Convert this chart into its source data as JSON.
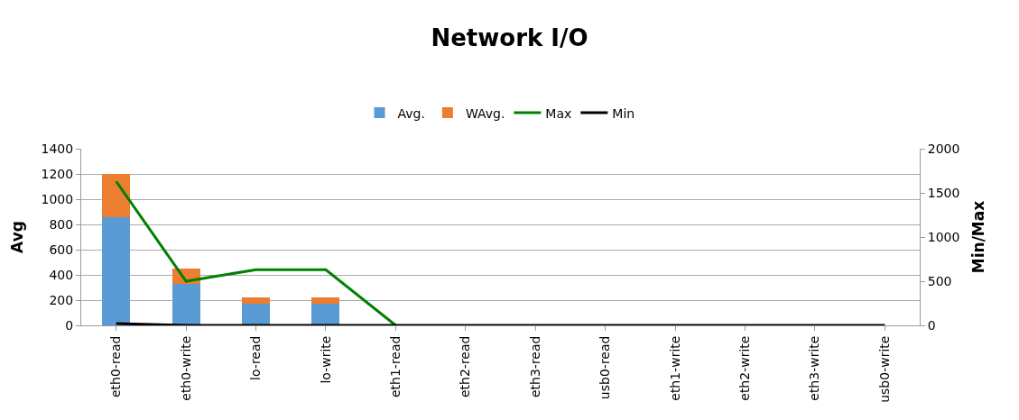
{
  "chart_data": {
    "type": "bar",
    "title": "Network I/O",
    "ylabel": "Avg",
    "y2label": "Min/Max",
    "categories": [
      "eth0-read",
      "eth0-write",
      "lo-read",
      "lo-write",
      "eth1-read",
      "eth2-read",
      "eth3-read",
      "usb0-read",
      "eth1-write",
      "eth2-write",
      "eth3-write",
      "usb0-write"
    ],
    "stacked": true,
    "series": [
      {
        "name": "Avg.",
        "color": "#5b9bd5",
        "values": [
          860,
          330,
          170,
          170,
          0,
          0,
          0,
          0,
          0,
          0,
          0,
          0
        ]
      },
      {
        "name": "WAvg.",
        "color": "#ed7d31",
        "values": [
          340,
          120,
          50,
          50,
          0,
          0,
          0,
          0,
          0,
          0,
          0,
          0
        ]
      },
      {
        "name": "Max",
        "type": "line",
        "axis": "y2",
        "color": "#008000",
        "values": [
          1630,
          500,
          630,
          630,
          0,
          null,
          null,
          null,
          null,
          null,
          null,
          null
        ]
      },
      {
        "name": "Min",
        "type": "line",
        "axis": "y2",
        "color": "#000000",
        "values": [
          20,
          0,
          0,
          0,
          0,
          0,
          0,
          0,
          0,
          0,
          0,
          0
        ]
      }
    ],
    "ylim": [
      0,
      1400
    ],
    "yticks": [
      0,
      200,
      400,
      600,
      800,
      1000,
      1200,
      1400
    ],
    "y2lim": [
      0,
      2000
    ],
    "y2ticks": [
      0,
      500,
      1000,
      1500,
      2000
    ],
    "grid": "y",
    "legend": "top"
  }
}
